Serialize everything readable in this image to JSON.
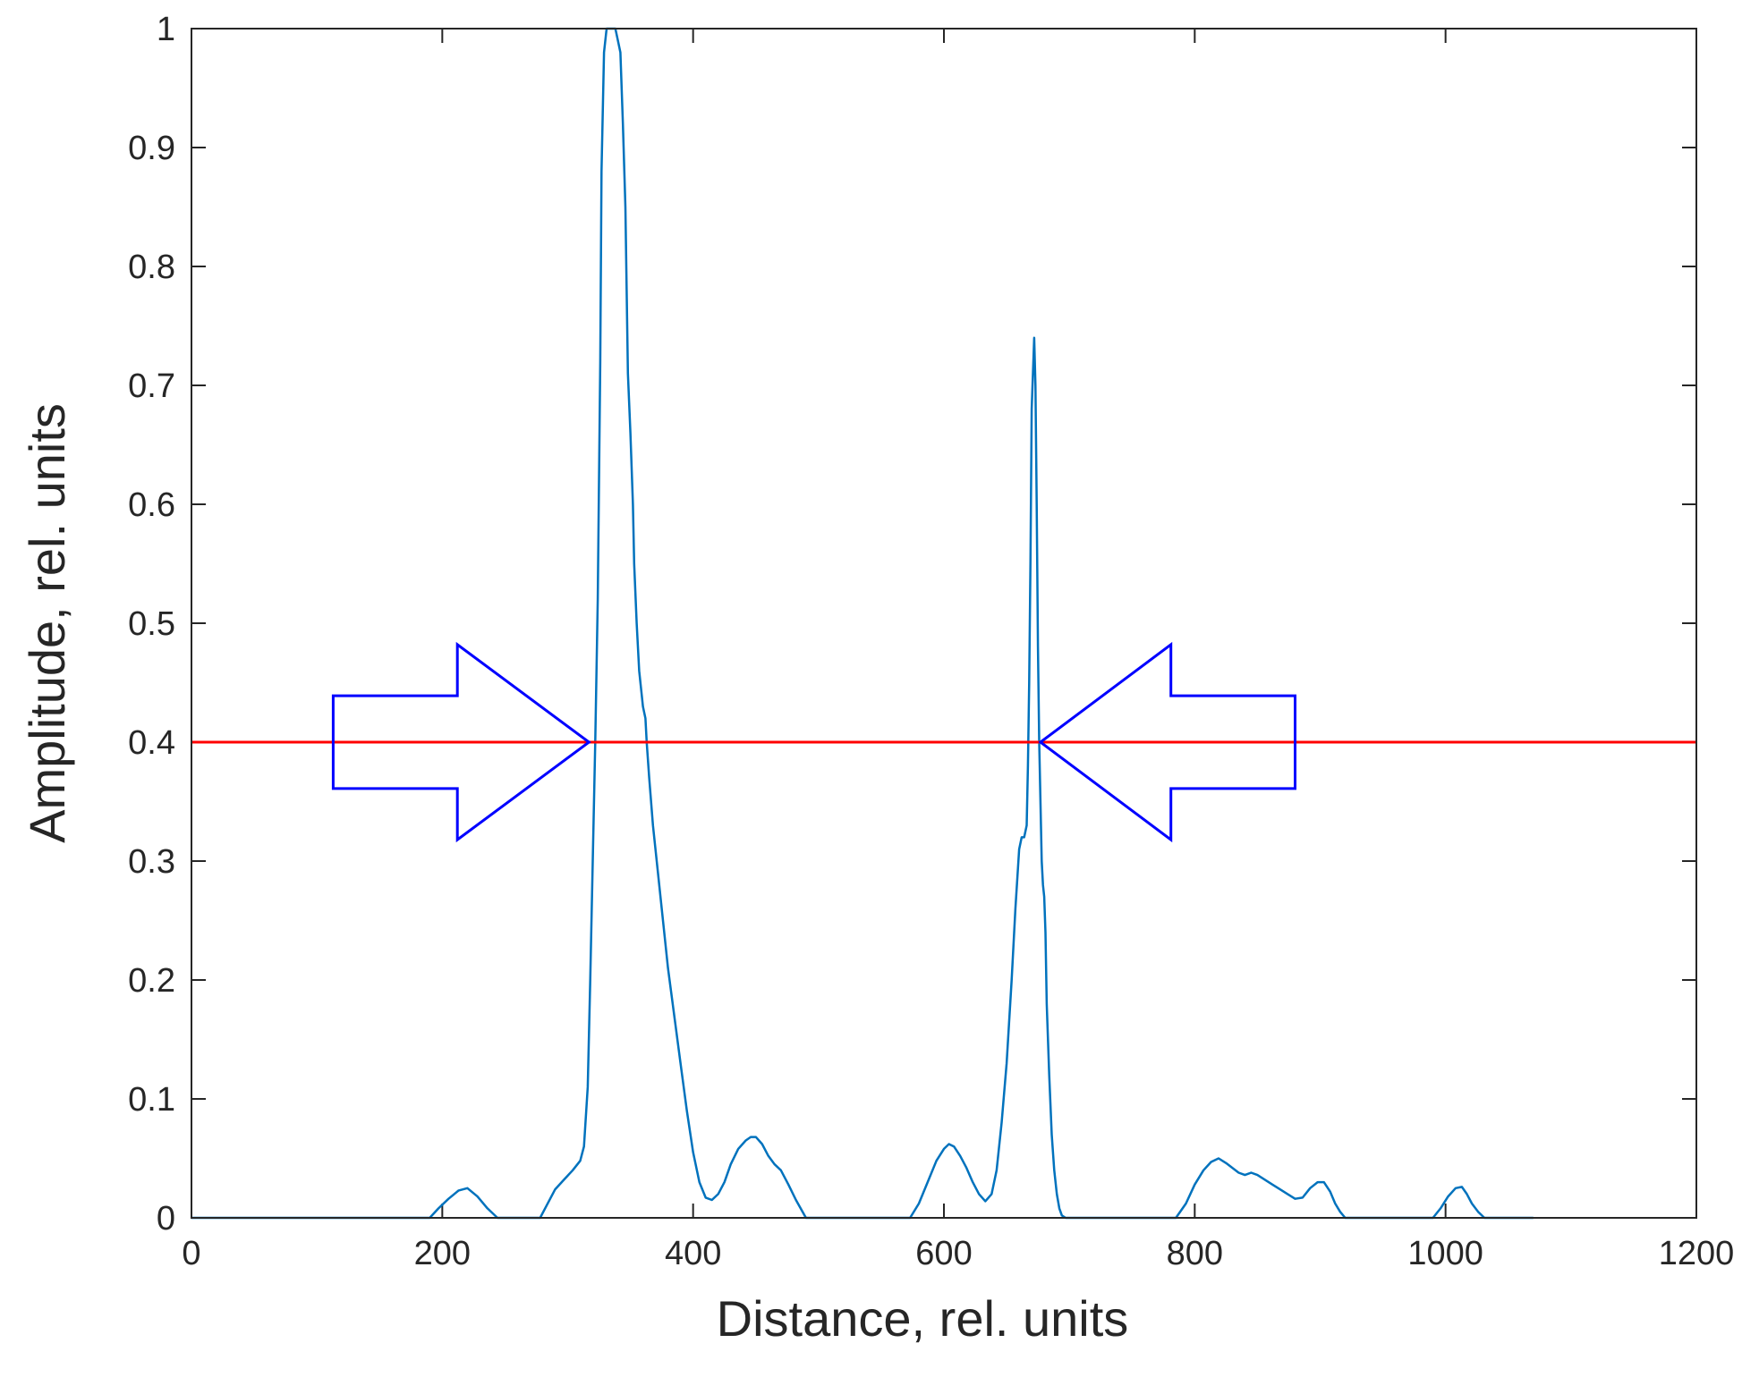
{
  "chart_data": {
    "type": "line",
    "title": "",
    "xlabel": "Distance, rel. units",
    "ylabel": "Amplitude, rel. units",
    "xlim": [
      0,
      1200
    ],
    "ylim": [
      0,
      1
    ],
    "xticks": [
      0,
      200,
      400,
      600,
      800,
      1000,
      1200
    ],
    "yticks": [
      0,
      0.1,
      0.2,
      0.3,
      0.4,
      0.5,
      0.6,
      0.7,
      0.8,
      0.9,
      1
    ],
    "xtick_labels": [
      "0",
      "200",
      "400",
      "600",
      "800",
      "1000",
      "1200"
    ],
    "ytick_labels": [
      "0",
      "0.1",
      "0.2",
      "0.3",
      "0.4",
      "0.5",
      "0.6",
      "0.7",
      "0.8",
      "0.9",
      "1"
    ],
    "grid": false,
    "series": [
      {
        "color": "#0072BD",
        "x": [
          0,
          190,
          197,
          205,
          213,
          220,
          228,
          236,
          244,
          278,
          283,
          290,
          297,
          304,
          310,
          313,
          316,
          318,
          320,
          322,
          324,
          326,
          327,
          329,
          331,
          333,
          336,
          338,
          340,
          342,
          344,
          346,
          347,
          348,
          350,
          352,
          353,
          355,
          357,
          359,
          360,
          362,
          363,
          365,
          368,
          372,
          376,
          380,
          385,
          390,
          395,
          400,
          405,
          410,
          415,
          420,
          425,
          430,
          436,
          442,
          446,
          450,
          455,
          460,
          465,
          470,
          476,
          482,
          490,
          573,
          580,
          587,
          594,
          600,
          604,
          608,
          613,
          618,
          623,
          628,
          633,
          638,
          642,
          646,
          650,
          654,
          657,
          660,
          662,
          664,
          666,
          667,
          668,
          669,
          670,
          671,
          672,
          673,
          674,
          675,
          676,
          677,
          678,
          679,
          680,
          681,
          682,
          684,
          686,
          688,
          690,
          692,
          694,
          697,
          700,
          703,
          785,
          793,
          800,
          807,
          813,
          819,
          825,
          830,
          835,
          840,
          845,
          850,
          856,
          862,
          868,
          874,
          880,
          886,
          892,
          898,
          903,
          908,
          912,
          916,
          920,
          990,
          996,
          1002,
          1008,
          1013,
          1017,
          1021,
          1026,
          1031,
          1036,
          1040,
          1070
        ],
        "y": [
          0,
          0,
          0.008,
          0.016,
          0.023,
          0.025,
          0.018,
          0.008,
          0,
          0,
          0.01,
          0.024,
          0.032,
          0.04,
          0.048,
          0.06,
          0.11,
          0.2,
          0.3,
          0.4,
          0.52,
          0.72,
          0.88,
          0.98,
          1.0,
          1.0,
          1.0,
          1.0,
          0.99,
          0.98,
          0.92,
          0.85,
          0.78,
          0.71,
          0.66,
          0.6,
          0.55,
          0.5,
          0.46,
          0.44,
          0.43,
          0.42,
          0.4,
          0.37,
          0.33,
          0.29,
          0.25,
          0.21,
          0.17,
          0.13,
          0.09,
          0.055,
          0.03,
          0.017,
          0.015,
          0.02,
          0.03,
          0.045,
          0.058,
          0.065,
          0.068,
          0.068,
          0.062,
          0.052,
          0.045,
          0.04,
          0.028,
          0.015,
          0,
          0,
          0.012,
          0.03,
          0.048,
          0.058,
          0.062,
          0.06,
          0.052,
          0.042,
          0.03,
          0.02,
          0.014,
          0.02,
          0.04,
          0.08,
          0.13,
          0.2,
          0.26,
          0.31,
          0.32,
          0.32,
          0.33,
          0.38,
          0.45,
          0.55,
          0.68,
          0.71,
          0.74,
          0.7,
          0.6,
          0.48,
          0.4,
          0.35,
          0.3,
          0.28,
          0.27,
          0.24,
          0.18,
          0.12,
          0.07,
          0.04,
          0.02,
          0.008,
          0.002,
          0,
          0,
          0,
          0,
          0.012,
          0.028,
          0.04,
          0.047,
          0.05,
          0.046,
          0.042,
          0.038,
          0.036,
          0.038,
          0.036,
          0.032,
          0.028,
          0.024,
          0.02,
          0.016,
          0.017,
          0.025,
          0.03,
          0.03,
          0.022,
          0.012,
          0.005,
          0,
          0,
          0.008,
          0.018,
          0.025,
          0.026,
          0.02,
          0.012,
          0.005,
          0,
          0,
          0,
          0
        ]
      },
      {
        "color": "#FF0000",
        "x": [
          0,
          1200
        ],
        "y": [
          0.4,
          0.4
        ]
      }
    ],
    "annotations": [
      {
        "type": "arrow",
        "direction": "right",
        "color": "#0000FF",
        "x_start": 113,
        "x_tip": 317,
        "x_head_base": 212,
        "y_center": 0.4,
        "body_half_height": 0.039,
        "head_half_height": 0.082
      },
      {
        "type": "arrow",
        "direction": "left",
        "color": "#0000FF",
        "x_start": 880,
        "x_tip": 677,
        "x_head_base": 781,
        "y_center": 0.4,
        "body_half_height": 0.039,
        "head_half_height": 0.082
      }
    ]
  }
}
